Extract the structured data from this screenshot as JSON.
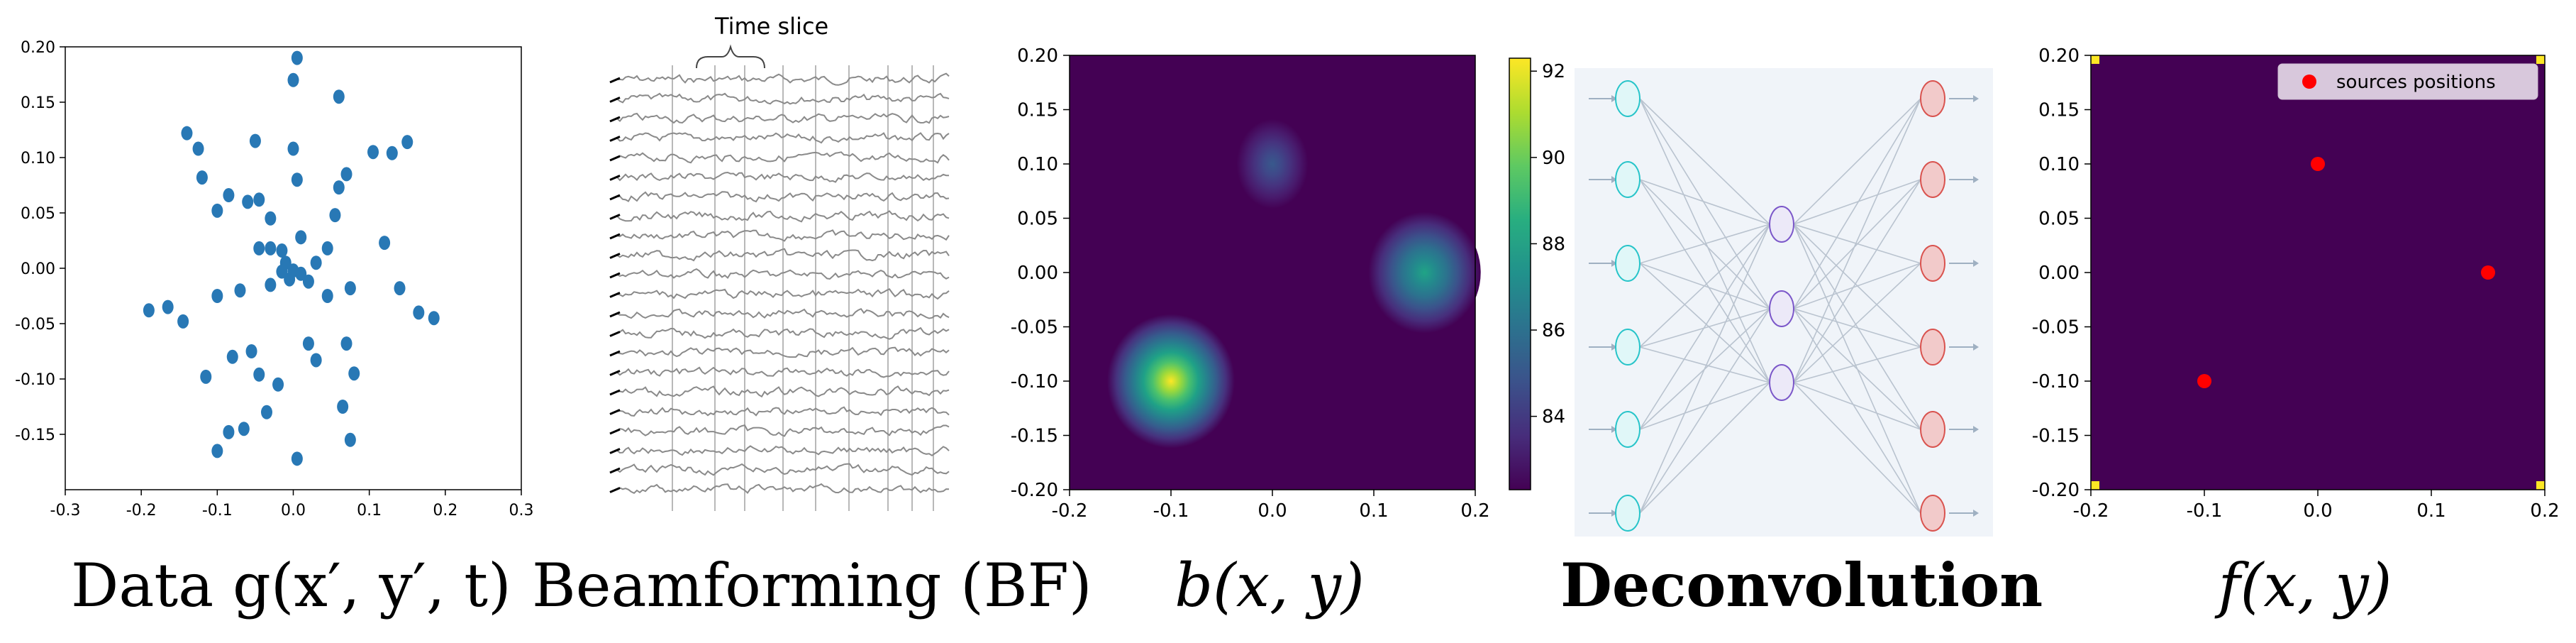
{
  "captions": {
    "data": "Data g(x′, y′, t)",
    "bf": "Beamforming (BF)",
    "b": "b(x, y)",
    "deconv": "Deconvolution",
    "f": "f(x, y)"
  },
  "time_slice_label": "Time slice",
  "legend_label": "sources positions",
  "colors": {
    "scatter": "#2878b5",
    "heat_bg": "#440154",
    "red": "#ff0000",
    "in_node": "#27c4c9",
    "out_node": "#d9534f",
    "hid_node": "#7b57c9"
  },
  "chart_data": [
    {
      "type": "scatter",
      "xlim": [
        -0.3,
        0.3
      ],
      "ylim": [
        -0.2,
        0.2
      ],
      "x_ticks": [
        "-0.3",
        "-0.2",
        "-0.1",
        "0.0",
        "0.1",
        "0.2",
        "0.3"
      ],
      "y_ticks": [
        "0.20",
        "0.15",
        "0.10",
        "0.05",
        "0.00",
        "-0.05",
        "-0.10",
        "-0.15"
      ],
      "x": [
        0.005,
        0.0,
        -0.14,
        0.06,
        0.15,
        -0.125,
        -0.05,
        0.0,
        0.105,
        0.13,
        -0.12,
        0.06,
        -0.085,
        -0.06,
        -0.045,
        0.005,
        0.07,
        0.055,
        -0.1,
        -0.03,
        -0.03,
        0.045,
        0.12,
        -0.045,
        -0.015,
        0.01,
        -0.01,
        0.03,
        0.0,
        -0.015,
        0.02,
        -0.03,
        -0.005,
        0.01,
        -0.1,
        -0.07,
        0.045,
        0.075,
        0.14,
        -0.19,
        -0.165,
        -0.145,
        0.165,
        0.185,
        -0.055,
        0.02,
        0.07,
        -0.08,
        -0.115,
        -0.045,
        0.08,
        -0.02,
        0.03,
        -0.035,
        0.065,
        0.075,
        -0.085,
        -0.065,
        0.005,
        -0.1
      ],
      "y": [
        0.19,
        0.17,
        0.122,
        0.155,
        0.114,
        0.108,
        0.115,
        0.108,
        0.105,
        0.104,
        0.082,
        0.073,
        0.066,
        0.06,
        0.062,
        0.08,
        0.085,
        0.048,
        0.052,
        0.045,
        0.018,
        0.018,
        0.023,
        0.018,
        0.016,
        0.028,
        0.005,
        0.005,
        -0.002,
        -0.003,
        -0.012,
        -0.015,
        -0.01,
        -0.005,
        -0.025,
        -0.02,
        -0.025,
        -0.018,
        -0.018,
        -0.038,
        -0.035,
        -0.048,
        -0.04,
        -0.045,
        -0.075,
        -0.068,
        -0.068,
        -0.08,
        -0.098,
        -0.096,
        -0.095,
        -0.105,
        -0.083,
        -0.13,
        -0.125,
        -0.155,
        -0.148,
        -0.145,
        -0.172,
        -0.165
      ]
    },
    {
      "type": "heatmap",
      "xlim": [
        -0.2,
        0.2
      ],
      "ylim": [
        -0.2,
        0.2
      ],
      "x_ticks": [
        "-0.2",
        "-0.1",
        "0.0",
        "0.1",
        "0.2"
      ],
      "y_ticks": [
        "0.20",
        "0.15",
        "0.10",
        "0.05",
        "0.00",
        "-0.05",
        "-0.10",
        "-0.15",
        "-0.20"
      ],
      "colorbar_ticks": [
        "92",
        "90",
        "88",
        "86",
        "84"
      ],
      "colorbar_range": [
        82.3,
        92.3
      ],
      "blobs": [
        {
          "x": -0.1,
          "y": -0.1,
          "value": 92
        },
        {
          "x": 0.15,
          "y": 0.0,
          "value": 87.5
        },
        {
          "x": 0.0,
          "y": 0.1,
          "value": 84
        }
      ]
    },
    {
      "type": "scatter",
      "xlim": [
        -0.2,
        0.2
      ],
      "ylim": [
        -0.2,
        0.2
      ],
      "x_ticks": [
        "-0.2",
        "-0.1",
        "0.0",
        "0.1",
        "0.2"
      ],
      "y_ticks": [
        "0.20",
        "0.15",
        "0.10",
        "0.05",
        "0.00",
        "-0.05",
        "-0.10",
        "-0.15",
        "-0.20"
      ],
      "legend": "top-right",
      "series": [
        {
          "name": "sources positions",
          "x": [
            0.0,
            0.15,
            -0.1
          ],
          "y": [
            0.1,
            0.0,
            -0.1
          ]
        }
      ]
    }
  ]
}
